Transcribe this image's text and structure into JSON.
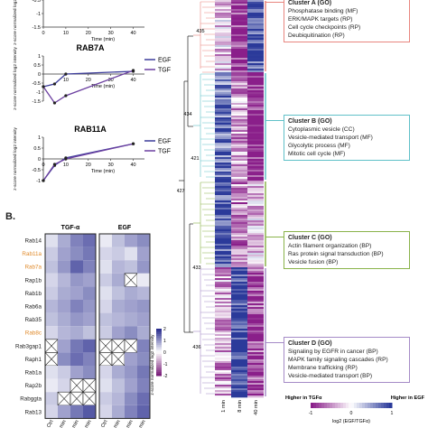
{
  "panel_b_label": "B.",
  "line_charts": [
    {
      "title": "",
      "ylabel": "z-score normalized log2 intensity",
      "xlabel": "Time (min)",
      "xticks": [
        "0",
        "10",
        "20",
        "30",
        "40"
      ],
      "yticks": [
        "-0.5",
        "-1",
        "-1.5"
      ],
      "legend": [],
      "chart_data": {
        "type": "line",
        "x": [
          0,
          5,
          10,
          40
        ],
        "series": [
          {
            "values": [
              null,
              null,
              null,
              null
            ]
          }
        ],
        "xlim": [
          0,
          45
        ],
        "ylim": [
          -1.5,
          0
        ]
      }
    },
    {
      "title": "RAB7A",
      "ylabel": "z-score normalized log2 intensity",
      "xlabel": "Time (min)",
      "xticks": [
        "10",
        "20",
        "30",
        "40"
      ],
      "yticks": [
        "1",
        "0.5",
        "0",
        "-0.5",
        "-1",
        "-1.5"
      ],
      "legend": [
        {
          "name": "EGF",
          "color": "#3c3c9a"
        },
        {
          "name": "TGF",
          "color": "#6b3fa0"
        }
      ],
      "chart_data": {
        "type": "line",
        "x": [
          0,
          5,
          10,
          40
        ],
        "series": [
          {
            "name": "EGF",
            "values": [
              -0.7,
              -0.55,
              0.0,
              0.15
            ]
          },
          {
            "name": "TGF",
            "values": [
              -0.7,
              -1.6,
              -1.2,
              0.2
            ]
          }
        ],
        "xlim": [
          0,
          45
        ],
        "ylim": [
          -1.5,
          1
        ]
      }
    },
    {
      "title": "RAB11A",
      "ylabel": "z-score normalized log2 intensity",
      "xlabel": "Time (min)",
      "xticks": [
        "0",
        "10",
        "20",
        "30",
        "40"
      ],
      "yticks": [
        "1",
        "0.5",
        "0",
        "-0.5",
        "-1"
      ],
      "legend": [
        {
          "name": "EGF",
          "color": "#3c3c9a"
        },
        {
          "name": "TGF",
          "color": "#6b3fa0"
        }
      ],
      "chart_data": {
        "type": "line",
        "x": [
          0,
          5,
          10,
          40
        ],
        "series": [
          {
            "name": "EGF",
            "values": [
              -1.0,
              -0.3,
              0.05,
              0.7
            ]
          },
          {
            "name": "TGF",
            "values": [
              -1.0,
              -0.25,
              0.0,
              0.7
            ]
          }
        ],
        "xlim": [
          0,
          45
        ],
        "ylim": [
          -1,
          1
        ]
      }
    }
  ],
  "rab_heatmap": {
    "groups": [
      "TGF-α",
      "EGF"
    ],
    "columns": [
      "Ctrl",
      "1 min",
      "8 min",
      "40 min"
    ],
    "rows": [
      {
        "name": "Rab14",
        "highlight": false
      },
      {
        "name": "Rab11a",
        "highlight": true
      },
      {
        "name": "Rab7a",
        "highlight": true
      },
      {
        "name": "Rap1b",
        "highlight": false
      },
      {
        "name": "Rab1b",
        "highlight": false
      },
      {
        "name": "Rab6a",
        "highlight": false
      },
      {
        "name": "Rab35",
        "highlight": false
      },
      {
        "name": "Rab8c",
        "highlight": true
      },
      {
        "name": "Rab3gap1",
        "highlight": false
      },
      {
        "name": "Raph1",
        "highlight": false
      },
      {
        "name": "Rab1a",
        "highlight": false
      },
      {
        "name": "Rap2b",
        "highlight": false
      },
      {
        "name": "Rabggta",
        "highlight": false
      },
      {
        "name": "Rab13",
        "highlight": false
      }
    ],
    "tgf_values": [
      [
        0.3,
        0.8,
        1.2,
        1.4
      ],
      [
        0.5,
        0.9,
        1.1,
        1.3
      ],
      [
        0.6,
        1.0,
        1.5,
        1.2
      ],
      [
        0.4,
        0.7,
        1.0,
        0.9
      ],
      [
        0.5,
        0.8,
        0.9,
        1.1
      ],
      [
        0.7,
        0.9,
        1.2,
        1.0
      ],
      [
        0.6,
        0.8,
        1.0,
        0.9
      ],
      [
        0.4,
        0.7,
        0.8,
        0.6
      ],
      [
        null,
        0.9,
        1.3,
        1.5
      ],
      [
        null,
        1.1,
        1.4,
        1.2
      ],
      [
        0.3,
        0.5,
        0.9,
        1.1
      ],
      [
        0.2,
        0.4,
        null,
        null
      ],
      [
        0.5,
        null,
        null,
        null
      ],
      [
        0.4,
        0.9,
        1.3,
        1.6
      ]
    ],
    "egf_values": [
      [
        0.2,
        0.6,
        0.9,
        1.1
      ],
      [
        0.4,
        0.5,
        0.3,
        0.9
      ],
      [
        0.3,
        0.7,
        0.6,
        1.0
      ],
      [
        0.5,
        0.8,
        null,
        0.2
      ],
      [
        0.3,
        0.6,
        0.8,
        0.7
      ],
      [
        0.4,
        0.8,
        0.9,
        1.0
      ],
      [
        0.6,
        0.7,
        0.8,
        0.9
      ],
      [
        0.5,
        0.9,
        1.1,
        0.8
      ],
      [
        null,
        null,
        null,
        1.2
      ],
      [
        null,
        null,
        0.9,
        1.1
      ],
      [
        0.4,
        0.8,
        1.0,
        1.3
      ],
      [
        0.3,
        0.6,
        0.9,
        1.2
      ],
      [
        0.5,
        0.7,
        1.1,
        1.4
      ],
      [
        0.4,
        0.8,
        1.2,
        1.5
      ]
    ],
    "colorbar": {
      "label": "z-score normalized log2 intensity",
      "ticks": [
        "2",
        "1",
        "0",
        "-1",
        "-2"
      ]
    }
  },
  "main_heatmap": {
    "columns": [
      "1 min",
      "8 min",
      "40 min"
    ],
    "node_labels": [
      "435",
      "434",
      "421",
      "427",
      "433",
      "436"
    ],
    "clusters": [
      {
        "title": "Cluster A (GO)",
        "color": "#e8857e",
        "items": [
          "Phosphatase binding (MF)",
          "ERK/MAPK targets (RP)",
          "Cell cycle checkpoints (RP)",
          "Deubiquitination (RP)"
        ]
      },
      {
        "title": "Cluster B (GO)",
        "color": "#5fc0c8",
        "items": [
          "Cytoplasmic vesicle (CC)",
          "Vesicle-mediated transport (MF)",
          "Glycolytic process (MF)",
          "Mitotic cell cycle (MF)"
        ]
      },
      {
        "title": "Cluster C (GO)",
        "color": "#8ab34a",
        "items": [
          "Actin filament organization (BP)",
          "Ras protein signal transduction (BP)",
          "Vesicle fusion (BP)"
        ]
      },
      {
        "title": "Cluster D (GO)",
        "color": "#a58bc7",
        "items": [
          "Signaling by EGFR in cancer (BP)",
          "MAPK family signaling cascades (RP)",
          "Membrane trafficking (RP)",
          "Vesicle-mediated transport (BP)"
        ]
      }
    ],
    "legend": {
      "left_label": "Higher in TGFα",
      "right_label": "Higher in EGF",
      "ticks": [
        "-1",
        "0",
        "1"
      ],
      "xlabel": "log2 (EGF/TGFα)"
    }
  },
  "colors": {
    "high": "#2b2f8f",
    "low": "#ffffff",
    "neg": "#7a1f7a",
    "egf_line": "#3c3c9a",
    "tgf_line": "#6b3fa0",
    "highlight_label": "#e08a2a"
  }
}
